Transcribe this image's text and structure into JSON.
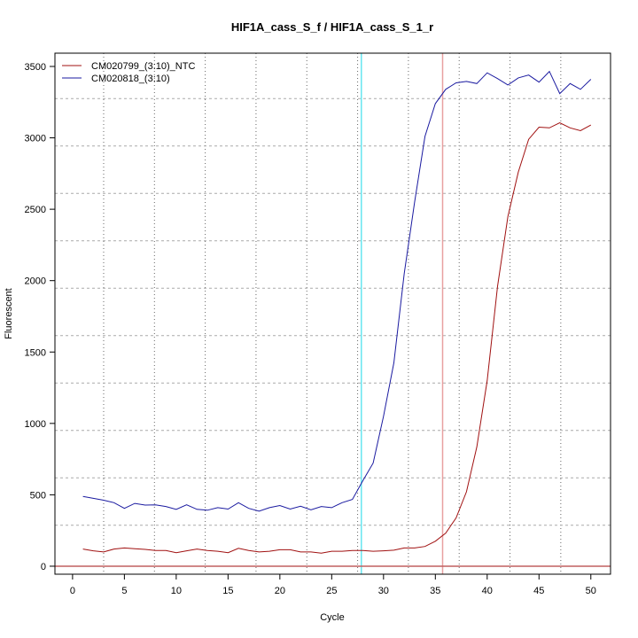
{
  "chart_data": {
    "type": "line",
    "title": "HIF1A_cass_S_f / HIF1A_cass_S_1_r",
    "xlabel": "Cycle",
    "ylabel": "Fluorescent",
    "xlim": [
      -1.7,
      51.9
    ],
    "ylim": [
      -56,
      3593
    ],
    "x_ticks": [
      0,
      5,
      10,
      15,
      20,
      25,
      30,
      35,
      40,
      45,
      50
    ],
    "y_ticks": [
      0,
      500,
      1000,
      1500,
      2000,
      2500,
      3000,
      3500
    ],
    "grid": true,
    "grid_x": [
      3.0,
      7.9,
      12.8,
      17.7,
      22.6,
      27.5,
      32.4,
      37.3,
      42.2,
      47.1
    ],
    "grid_y": [
      287,
      619,
      951,
      1283,
      1615,
      1947,
      2279,
      2611,
      2943,
      3275
    ],
    "threshold_lines": {
      "vertical": [
        {
          "x": 27.86,
          "color": "#66e6f0"
        },
        {
          "x": 35.7,
          "color": "#e8a0a0"
        }
      ],
      "horizontal": [
        {
          "y": 0,
          "color": "#c06060"
        }
      ]
    },
    "legend_position": "top-left",
    "x": [
      1,
      2,
      3,
      4,
      5,
      6,
      7,
      8,
      9,
      10,
      11,
      12,
      13,
      14,
      15,
      16,
      17,
      18,
      19,
      20,
      21,
      22,
      23,
      24,
      25,
      26,
      27,
      28,
      29,
      30,
      31,
      32,
      33,
      34,
      35,
      36,
      37,
      38,
      39,
      40,
      41,
      42,
      43,
      44,
      45,
      46,
      47,
      48,
      49,
      50
    ],
    "series": [
      {
        "name": "CM020799_(3:10)_NTC",
        "color": "#a01010",
        "values": [
          120,
          108,
          100,
          120,
          128,
          122,
          118,
          110,
          110,
          95,
          108,
          120,
          110,
          105,
          95,
          125,
          110,
          100,
          105,
          115,
          115,
          100,
          100,
          92,
          105,
          105,
          110,
          110,
          105,
          108,
          112,
          128,
          128,
          138,
          175,
          232,
          338,
          521,
          835,
          1300,
          1960,
          2450,
          2760,
          2990,
          3075,
          3070,
          3105,
          3070,
          3050,
          3090
        ]
      },
      {
        "name": "CM020818_(3:10)",
        "color": "#1a1aa0",
        "values": [
          488,
          475,
          462,
          445,
          405,
          440,
          428,
          430,
          418,
          398,
          430,
          398,
          392,
          410,
          400,
          445,
          405,
          385,
          410,
          425,
          400,
          420,
          395,
          418,
          410,
          445,
          468,
          598,
          722,
          1050,
          1425,
          2050,
          2550,
          3010,
          3240,
          3340,
          3385,
          3395,
          3380,
          3455,
          3415,
          3370,
          3420,
          3440,
          3390,
          3465,
          3310,
          3380,
          3340,
          3410
        ]
      }
    ]
  }
}
